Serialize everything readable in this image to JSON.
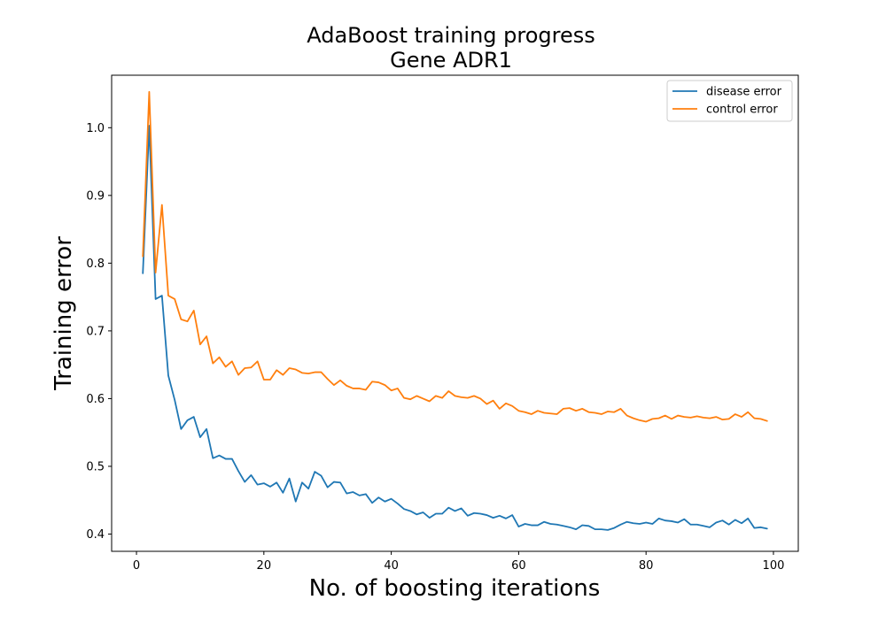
{
  "chart_data": {
    "type": "line",
    "title": "AdaBoost training progress",
    "subtitle": "Gene ADR1",
    "xlabel": "No. of boosting iterations",
    "ylabel": "Training error",
    "xlim": [
      -3.9,
      103.9
    ],
    "ylim": [
      0.3745,
      1.0775
    ],
    "xticks": [
      0,
      20,
      40,
      60,
      80,
      100
    ],
    "xtick_labels": [
      "0",
      "20",
      "40",
      "60",
      "80",
      "100"
    ],
    "yticks": [
      0.4,
      0.5,
      0.6,
      0.7,
      0.8,
      0.9,
      1.0
    ],
    "ytick_labels": [
      "0.4",
      "0.5",
      "0.6",
      "0.7",
      "0.8",
      "0.9",
      "1.0"
    ],
    "grid": false,
    "legend_position": "top-right",
    "x": [
      1,
      2,
      3,
      4,
      5,
      6,
      7,
      8,
      9,
      10,
      11,
      12,
      13,
      14,
      15,
      16,
      17,
      18,
      19,
      20,
      21,
      22,
      23,
      24,
      25,
      26,
      27,
      28,
      29,
      30,
      31,
      32,
      33,
      34,
      35,
      36,
      37,
      38,
      39,
      40,
      41,
      42,
      43,
      44,
      45,
      46,
      47,
      48,
      49,
      50,
      51,
      52,
      53,
      54,
      55,
      56,
      57,
      58,
      59,
      60,
      61,
      62,
      63,
      64,
      65,
      66,
      67,
      68,
      69,
      70,
      71,
      72,
      73,
      74,
      75,
      76,
      77,
      78,
      79,
      80,
      81,
      82,
      83,
      84,
      85,
      86,
      87,
      88,
      89,
      90,
      91,
      92,
      93,
      94,
      95,
      96,
      97,
      98,
      99
    ],
    "series": [
      {
        "name": "disease error",
        "color": "#1f77b4",
        "values": [
          0.785,
          1.003,
          0.747,
          0.752,
          0.634,
          0.598,
          0.555,
          0.568,
          0.573,
          0.543,
          0.555,
          0.512,
          0.516,
          0.511,
          0.511,
          0.493,
          0.477,
          0.487,
          0.473,
          0.475,
          0.47,
          0.476,
          0.461,
          0.482,
          0.448,
          0.476,
          0.467,
          0.492,
          0.486,
          0.469,
          0.477,
          0.476,
          0.46,
          0.462,
          0.457,
          0.459,
          0.446,
          0.454,
          0.448,
          0.452,
          0.445,
          0.437,
          0.434,
          0.429,
          0.432,
          0.424,
          0.43,
          0.43,
          0.439,
          0.434,
          0.438,
          0.427,
          0.431,
          0.43,
          0.428,
          0.424,
          0.427,
          0.423,
          0.428,
          0.411,
          0.415,
          0.413,
          0.413,
          0.418,
          0.415,
          0.414,
          0.412,
          0.41,
          0.407,
          0.413,
          0.412,
          0.407,
          0.407,
          0.406,
          0.409,
          0.414,
          0.418,
          0.416,
          0.415,
          0.417,
          0.415,
          0.423,
          0.42,
          0.419,
          0.417,
          0.422,
          0.414,
          0.414,
          0.412,
          0.41,
          0.417,
          0.42,
          0.414,
          0.421,
          0.416,
          0.423,
          0.409,
          0.41,
          0.408
        ]
      },
      {
        "name": "control error",
        "color": "#ff7f0e",
        "values": [
          0.81,
          1.053,
          0.786,
          0.886,
          0.752,
          0.747,
          0.717,
          0.714,
          0.73,
          0.68,
          0.692,
          0.652,
          0.661,
          0.647,
          0.655,
          0.635,
          0.645,
          0.646,
          0.655,
          0.628,
          0.628,
          0.642,
          0.635,
          0.645,
          0.643,
          0.638,
          0.637,
          0.639,
          0.639,
          0.629,
          0.62,
          0.627,
          0.619,
          0.615,
          0.615,
          0.613,
          0.625,
          0.624,
          0.62,
          0.612,
          0.615,
          0.601,
          0.599,
          0.604,
          0.6,
          0.596,
          0.604,
          0.601,
          0.611,
          0.604,
          0.602,
          0.601,
          0.604,
          0.6,
          0.592,
          0.597,
          0.585,
          0.593,
          0.589,
          0.582,
          0.58,
          0.577,
          0.582,
          0.579,
          0.578,
          0.577,
          0.585,
          0.586,
          0.582,
          0.585,
          0.58,
          0.579,
          0.577,
          0.581,
          0.58,
          0.585,
          0.575,
          0.571,
          0.568,
          0.566,
          0.57,
          0.571,
          0.575,
          0.57,
          0.575,
          0.573,
          0.572,
          0.574,
          0.572,
          0.571,
          0.573,
          0.569,
          0.57,
          0.577,
          0.573,
          0.58,
          0.571,
          0.57,
          0.567
        ]
      }
    ]
  }
}
